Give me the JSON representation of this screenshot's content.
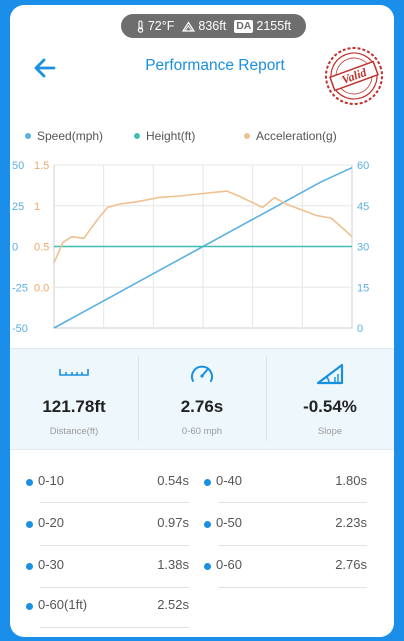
{
  "status": {
    "temperature": "72°F",
    "elevation": "836ft",
    "da_badge": "DA",
    "density_altitude": "2155ft"
  },
  "header": {
    "title": "Performance Report",
    "stamp_text": "Valid"
  },
  "colors": {
    "speed": "#5ab0e2",
    "height": "#3fbdb0",
    "acceleration": "#f0c08f",
    "accent": "#1b8fe0"
  },
  "legend": {
    "speed": "Speed(mph)",
    "height": "Height(ft)",
    "acceleration": "Acceleration(g)"
  },
  "chart_data": {
    "type": "line",
    "left_axis_height": [
      "50",
      "25",
      "0",
      "-25",
      "-50"
    ],
    "left_axis_acceleration": [
      "1.5",
      "1",
      "0.5",
      "0.0"
    ],
    "right_axis_speed": [
      "60",
      "45",
      "30",
      "15",
      "0"
    ],
    "series": [
      {
        "name": "Speed(mph)",
        "axis": "right",
        "x": [
          0,
          0.1,
          0.2,
          0.3,
          0.4,
          0.5,
          0.6,
          0.7,
          0.8,
          0.9,
          1.0
        ],
        "values": [
          0,
          6,
          12,
          18,
          24,
          30,
          36,
          42,
          48,
          54,
          59
        ]
      },
      {
        "name": "Height(ft)",
        "axis": "left",
        "x": [
          0,
          0.1,
          0.2,
          0.3,
          0.4,
          0.5,
          0.6,
          0.7,
          0.8,
          0.9,
          1.0
        ],
        "values": [
          0,
          0,
          0,
          0,
          0,
          0,
          0,
          0,
          0,
          0,
          0
        ]
      },
      {
        "name": "Acceleration(g)",
        "axis": "left2",
        "x": [
          0,
          0.03,
          0.06,
          0.1,
          0.15,
          0.18,
          0.22,
          0.28,
          0.35,
          0.42,
          0.5,
          0.58,
          0.62,
          0.66,
          0.7,
          0.74,
          0.78,
          0.83,
          0.88,
          0.93,
          0.97,
          1.0
        ],
        "values": [
          0.3,
          0.55,
          0.62,
          0.6,
          0.85,
          0.98,
          1.02,
          1.05,
          1.1,
          1.12,
          1.15,
          1.18,
          1.12,
          1.05,
          0.98,
          1.1,
          1.02,
          0.95,
          0.88,
          0.85,
          0.72,
          0.62
        ]
      }
    ]
  },
  "stats": [
    {
      "value": "121.78ft",
      "label": "Distance(ft)"
    },
    {
      "value": "2.76s",
      "label": "0-60 mph"
    },
    {
      "value": "-0.54%",
      "label": "Slope"
    }
  ],
  "splits": [
    {
      "label": "0-10",
      "time": "0.54s"
    },
    {
      "label": "0-40",
      "time": "1.80s"
    },
    {
      "label": "0-20",
      "time": "0.97s"
    },
    {
      "label": "0-50",
      "time": "2.23s"
    },
    {
      "label": "0-30",
      "time": "1.38s"
    },
    {
      "label": "0-60",
      "time": "2.76s"
    },
    {
      "label": "0-60(1ft)",
      "time": "2.52s"
    }
  ]
}
